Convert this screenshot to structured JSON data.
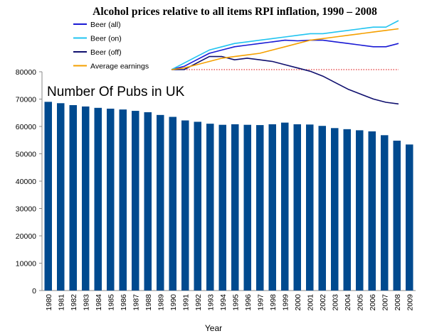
{
  "chart_data": [
    {
      "type": "bar",
      "title": "Number Of Pubs in UK",
      "xlabel": "Year",
      "ylabel": "",
      "ylim": [
        0,
        80000
      ],
      "ytick_step": 10000,
      "ytick_labels": [
        "0",
        "10000",
        "20000",
        "30000",
        "40000",
        "50000",
        "60000",
        "70000",
        "80000"
      ],
      "categories": [
        "1980",
        "1981",
        "1982",
        "1983",
        "1984",
        "1985",
        "1986",
        "1987",
        "1988",
        "1989",
        "1990",
        "1991",
        "1992",
        "1993",
        "1994",
        "1995",
        "1996",
        "1997",
        "1998",
        "1999",
        "2000",
        "2001",
        "2002",
        "2003",
        "2004",
        "2005",
        "2006",
        "2007",
        "2008",
        "2009"
      ],
      "values": [
        69000,
        68500,
        67800,
        67300,
        66800,
        66500,
        66200,
        65700,
        65200,
        64200,
        63500,
        62200,
        61700,
        61000,
        60600,
        60800,
        60600,
        60500,
        60800,
        61400,
        60800,
        60700,
        60200,
        59400,
        59000,
        58600,
        58200,
        56800,
        54800,
        53400
      ],
      "bar_color": "#004a8f"
    },
    {
      "type": "line",
      "title": "Alcohol prices relative to all items RPI inflation, 1990 – 2008",
      "x_range": [
        1990,
        2008
      ],
      "baseline_value": 100,
      "baseline_color": "#dd0000",
      "series": [
        {
          "name": "Beer (all)",
          "color": "#1a1ad4",
          "x": [
            1990,
            1991,
            1992,
            1993,
            1994,
            1995,
            1996,
            1997,
            1998,
            1999,
            2000,
            2001,
            2002,
            2003,
            2004,
            2005,
            2006,
            2007,
            2008
          ],
          "values": [
            100,
            101,
            103,
            105,
            106,
            107,
            107.5,
            108,
            108.5,
            109,
            108.8,
            109,
            109,
            108.5,
            108,
            107.5,
            107,
            107,
            108
          ]
        },
        {
          "name": "Beer (on)",
          "color": "#21c4f0",
          "x": [
            1990,
            1991,
            1992,
            1993,
            1994,
            1995,
            1996,
            1997,
            1998,
            1999,
            2000,
            2001,
            2002,
            2003,
            2004,
            2005,
            2006,
            2007,
            2008
          ],
          "values": [
            100,
            102,
            104,
            106,
            107,
            108,
            108.5,
            109,
            109.5,
            110,
            110.5,
            111,
            111,
            111.5,
            112,
            112.5,
            113,
            113,
            115
          ]
        },
        {
          "name": "Beer (off)",
          "color": "#0f0f6e",
          "x": [
            1990,
            1991,
            1992,
            1993,
            1994,
            1995,
            1996,
            1997,
            1998,
            1999,
            2000,
            2001,
            2002,
            2003,
            2004,
            2005,
            2006,
            2007,
            2008
          ],
          "values": [
            100,
            100,
            102,
            104,
            104,
            103,
            103.5,
            103,
            102.5,
            101.5,
            100.5,
            99.5,
            98,
            96,
            94,
            92.5,
            91,
            90,
            89.5
          ]
        },
        {
          "name": "Average earnings",
          "color": "#f5a000",
          "x": [
            1990,
            1991,
            1992,
            1993,
            1994,
            1995,
            1996,
            1997,
            1998,
            1999,
            2000,
            2001,
            2002,
            2003,
            2004,
            2005,
            2006,
            2007,
            2008
          ],
          "values": [
            100,
            100.5,
            101.5,
            102.5,
            103.5,
            104,
            104.5,
            105,
            106,
            107,
            108,
            109,
            109.5,
            110,
            110.5,
            111,
            111.5,
            112,
            112.5
          ]
        }
      ]
    }
  ]
}
